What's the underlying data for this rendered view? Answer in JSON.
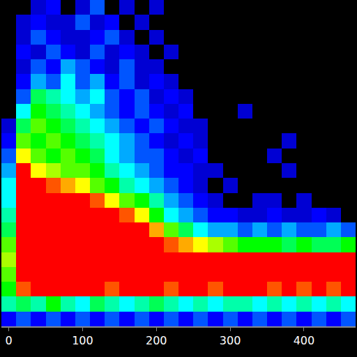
{
  "chart_data": {
    "type": "heatmap",
    "x": [
      0,
      20,
      40,
      60,
      80,
      100,
      120,
      140,
      160,
      180,
      200,
      220,
      240,
      260,
      280,
      300,
      320,
      340,
      360,
      380,
      400,
      420,
      440,
      460
    ],
    "y": [
      0,
      1,
      2,
      3,
      4,
      5,
      6,
      7,
      8,
      9,
      10,
      11,
      12,
      13,
      14,
      15,
      16,
      17,
      18,
      19,
      20,
      21
    ],
    "xlim": [
      -10,
      470
    ],
    "xticks": [
      0,
      100,
      200,
      300,
      400
    ],
    "ylim": [
      -0.5,
      21.5
    ],
    "zlim": [
      0,
      100
    ],
    "tick_labels": "x",
    "grid": false,
    "z": [
      [
        25,
        30,
        25,
        30,
        25,
        30,
        25,
        30,
        25,
        30,
        25,
        30,
        25,
        30,
        25,
        30,
        25,
        30,
        25,
        30,
        25,
        30,
        25,
        30
      ],
      [
        45,
        50,
        45,
        55,
        45,
        40,
        50,
        45,
        40,
        45,
        50,
        45,
        40,
        45,
        40,
        45,
        45,
        40,
        45,
        40,
        45,
        40,
        45,
        40
      ],
      [
        55,
        80,
        90,
        85,
        90,
        85,
        90,
        80,
        85,
        90,
        85,
        80,
        85,
        85,
        80,
        85,
        90,
        85,
        80,
        85,
        80,
        85,
        80,
        85
      ],
      [
        60,
        95,
        95,
        90,
        95,
        95,
        95,
        90,
        95,
        90,
        95,
        90,
        95,
        95,
        90,
        95,
        90,
        95,
        90,
        95,
        90,
        95,
        90,
        95
      ],
      [
        65,
        95,
        95,
        95,
        95,
        95,
        90,
        95,
        90,
        90,
        90,
        85,
        90,
        85,
        90,
        85,
        90,
        85,
        90,
        85,
        90,
        85,
        90,
        85
      ],
      [
        60,
        95,
        95,
        95,
        95,
        90,
        95,
        90,
        90,
        85,
        85,
        80,
        75,
        70,
        65,
        60,
        55,
        55,
        55,
        50,
        55,
        50,
        50,
        55
      ],
      [
        50,
        95,
        95,
        95,
        90,
        95,
        90,
        90,
        85,
        85,
        75,
        60,
        50,
        40,
        35,
        35,
        30,
        35,
        30,
        35,
        30,
        30,
        35,
        30
      ],
      [
        45,
        95,
        95,
        90,
        90,
        90,
        85,
        85,
        80,
        70,
        55,
        40,
        35,
        30,
        25,
        25,
        20,
        20,
        25,
        20,
        20,
        25,
        20,
        0
      ],
      [
        40,
        95,
        90,
        90,
        85,
        85,
        80,
        70,
        60,
        55,
        45,
        35,
        30,
        25,
        20,
        0,
        0,
        20,
        20,
        0,
        20,
        0,
        0,
        0
      ],
      [
        40,
        90,
        85,
        80,
        75,
        70,
        60,
        55,
        45,
        40,
        35,
        30,
        25,
        20,
        0,
        20,
        0,
        0,
        0,
        0,
        0,
        0,
        0,
        0
      ],
      [
        35,
        85,
        70,
        65,
        60,
        60,
        55,
        45,
        40,
        35,
        30,
        25,
        25,
        20,
        20,
        0,
        0,
        0,
        0,
        20,
        0,
        0,
        0,
        0
      ],
      [
        30,
        70,
        60,
        55,
        60,
        55,
        50,
        40,
        35,
        30,
        30,
        25,
        20,
        25,
        0,
        0,
        0,
        0,
        20,
        0,
        0,
        0,
        0,
        0
      ],
      [
        25,
        60,
        55,
        60,
        55,
        50,
        45,
        40,
        35,
        30,
        25,
        20,
        25,
        20,
        0,
        0,
        0,
        0,
        0,
        20,
        0,
        0,
        0,
        0
      ],
      [
        20,
        50,
        60,
        55,
        50,
        45,
        40,
        35,
        30,
        25,
        30,
        25,
        20,
        20,
        0,
        0,
        0,
        0,
        0,
        0,
        0,
        0,
        0,
        0
      ],
      [
        0,
        40,
        55,
        50,
        45,
        40,
        35,
        30,
        25,
        30,
        25,
        20,
        25,
        0,
        0,
        0,
        20,
        0,
        0,
        0,
        0,
        0,
        0,
        0
      ],
      [
        0,
        30,
        50,
        45,
        40,
        35,
        40,
        30,
        25,
        30,
        20,
        25,
        20,
        0,
        0,
        0,
        0,
        0,
        0,
        0,
        0,
        0,
        0,
        0
      ],
      [
        0,
        25,
        35,
        30,
        40,
        30,
        35,
        25,
        30,
        20,
        25,
        20,
        0,
        0,
        0,
        0,
        0,
        0,
        0,
        0,
        0,
        0,
        0,
        0
      ],
      [
        0,
        20,
        30,
        25,
        35,
        30,
        25,
        20,
        30,
        20,
        20,
        0,
        0,
        0,
        0,
        0,
        0,
        0,
        0,
        0,
        0,
        0,
        0,
        0
      ],
      [
        0,
        25,
        20,
        30,
        25,
        20,
        30,
        20,
        25,
        20,
        0,
        20,
        0,
        0,
        0,
        0,
        0,
        0,
        0,
        0,
        0,
        0,
        0,
        0
      ],
      [
        0,
        20,
        30,
        25,
        20,
        20,
        25,
        30,
        20,
        0,
        20,
        0,
        0,
        0,
        0,
        0,
        0,
        0,
        0,
        0,
        0,
        0,
        0,
        0
      ],
      [
        0,
        20,
        25,
        20,
        20,
        30,
        20,
        25,
        0,
        20,
        0,
        0,
        0,
        0,
        0,
        0,
        0,
        0,
        0,
        0,
        0,
        0,
        0,
        0
      ],
      [
        0,
        0,
        20,
        25,
        0,
        20,
        30,
        0,
        20,
        0,
        20,
        0,
        0,
        0,
        0,
        0,
        0,
        0,
        0,
        0,
        0,
        0,
        0,
        0
      ]
    ]
  }
}
